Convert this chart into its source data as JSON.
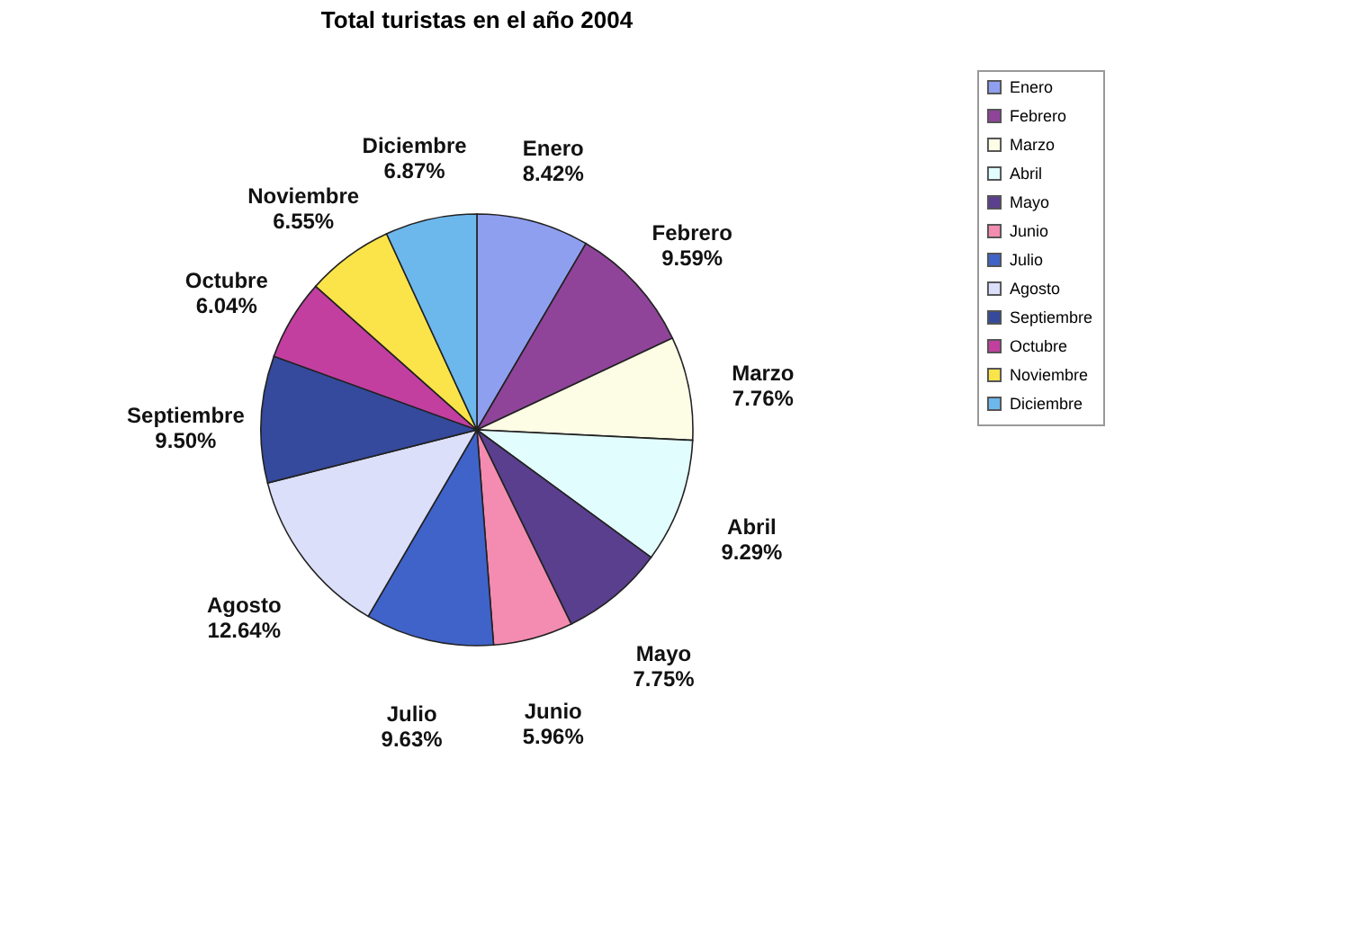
{
  "chart_data": {
    "type": "pie",
    "title": "Total turistas en el año 2004",
    "categories": [
      "Enero",
      "Febrero",
      "Marzo",
      "Abril",
      "Mayo",
      "Junio",
      "Julio",
      "Agosto",
      "Septiembre",
      "Octubre",
      "Noviembre",
      "Diciembre"
    ],
    "values": [
      8.42,
      9.59,
      7.76,
      9.29,
      7.75,
      5.96,
      9.63,
      12.64,
      9.5,
      6.04,
      6.55,
      6.87
    ],
    "value_labels": [
      "8.42%",
      "9.59%",
      "7.76%",
      "9.29%",
      "7.75%",
      "5.96%",
      "9.63%",
      "12.64%",
      "9.50%",
      "6.04%",
      "6.55%",
      "6.87%"
    ],
    "colors": [
      "#8f9ff0",
      "#8f449a",
      "#fdfde6",
      "#e1fdfd",
      "#5a3f8e",
      "#f48cb1",
      "#3f63c9",
      "#dcdffa",
      "#354a9c",
      "#c23fa0",
      "#fbe44a",
      "#6cb8ec"
    ],
    "legend": "right"
  }
}
